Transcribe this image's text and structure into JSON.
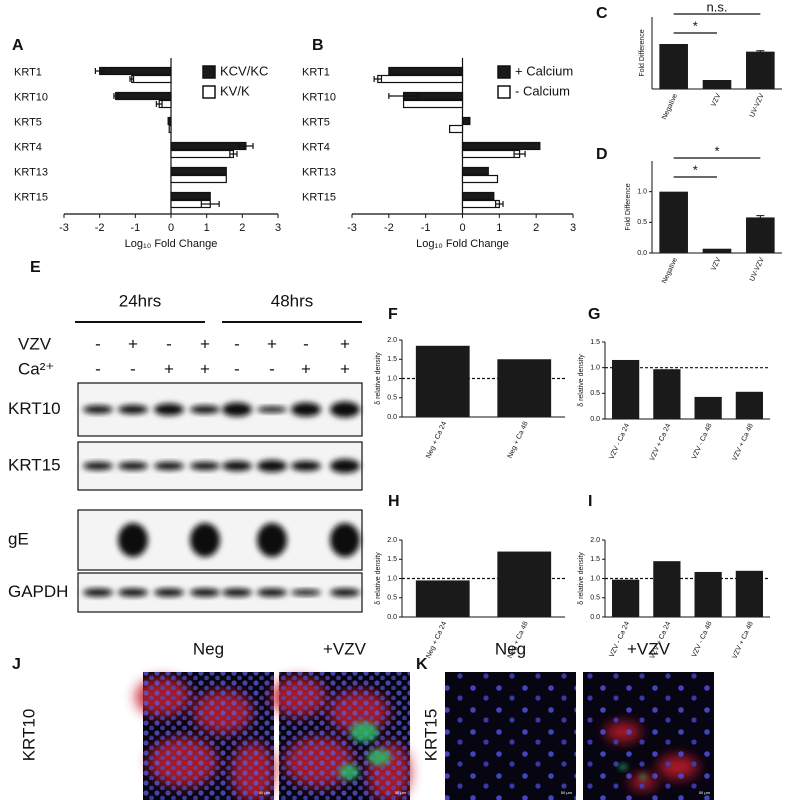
{
  "chart_data": [
    {
      "panel": "A",
      "type": "barh",
      "categories": [
        "KRT1",
        "KRT10",
        "KRT5",
        "KRT4",
        "KRT13",
        "KRT15"
      ],
      "series": [
        {
          "name": "KCV/KC",
          "color": "#1a1a1a",
          "values": [
            -2.0,
            -1.55,
            -0.08,
            2.1,
            1.55,
            1.1
          ],
          "errors": [
            0.12,
            0.05,
            null,
            0.2,
            null,
            null
          ]
        },
        {
          "name": "KV/K",
          "color": "#ffffff",
          "values": [
            -1.1,
            -0.33,
            -0.05,
            1.75,
            1.55,
            1.1
          ],
          "errors": [
            0.05,
            0.08,
            null,
            0.1,
            null,
            0.25
          ]
        }
      ],
      "x_label": "Log₁₀ Fold Change",
      "xlim": [
        -3,
        3
      ],
      "xticks": [
        -3,
        -2,
        -1,
        0,
        1,
        2,
        3
      ],
      "legend": "upper right"
    },
    {
      "panel": "B",
      "type": "barh",
      "categories": [
        "KRT1",
        "KRT10",
        "KRT5",
        "KRT4",
        "KRT13",
        "KRT15"
      ],
      "series": [
        {
          "name": "+ Calcium",
          "color": "#1a1a1a",
          "values": [
            -2.0,
            -1.6,
            0.2,
            2.1,
            0.7,
            0.85
          ],
          "errors": [
            null,
            0.4,
            null,
            null,
            null,
            null
          ]
        },
        {
          "name": "- Calcium",
          "color": "#ffffff",
          "values": [
            -2.3,
            -1.6,
            -0.35,
            1.55,
            0.95,
            1.0
          ],
          "errors": [
            0.1,
            null,
            null,
            0.15,
            null,
            0.1
          ]
        }
      ],
      "x_label": "Log₁₀ Fold Change",
      "xlim": [
        -3,
        3
      ],
      "xticks": [
        -3,
        -2,
        -1,
        0,
        1,
        2,
        3
      ],
      "legend": "upper right"
    },
    {
      "panel": "C",
      "type": "bar",
      "categories": [
        "Negative",
        "VZV",
        "UV-VZV"
      ],
      "values": [
        1,
        0.2,
        0.83
      ],
      "errors": [
        null,
        null,
        0.02
      ],
      "color": "#1a1a1a",
      "y_label": "Fold Difference",
      "ylim": [
        0,
        1.6
      ],
      "annotations": [
        {
          "text": "*",
          "between": [
            "Negative",
            "VZV"
          ]
        },
        {
          "text": "n.s.",
          "between": [
            "Negative",
            "UV-VZV"
          ]
        }
      ]
    },
    {
      "panel": "D",
      "type": "bar",
      "categories": [
        "Negative",
        "VZV",
        "UV-VZV"
      ],
      "values": [
        1,
        0.07,
        0.58
      ],
      "errors": [
        null,
        null,
        0.03
      ],
      "color": "#1a1a1a",
      "y_label": "Fold Difference",
      "ylim": [
        0,
        1.5
      ],
      "yticks": [
        {
          "value": 0,
          "label": "0.0"
        },
        {
          "value": 0.5,
          "label": "0.5"
        },
        {
          "value": 1,
          "label": "1.0"
        }
      ],
      "annotations": [
        {
          "text": "*",
          "between": [
            "Negative",
            "VZV"
          ]
        },
        {
          "text": "*",
          "between": [
            "Negative",
            "UV-VZV"
          ]
        }
      ]
    },
    {
      "panel": "F",
      "type": "bar",
      "categories": [
        "Neg + Ca 24",
        "Neg + Ca 48"
      ],
      "values": [
        1.85,
        1.5
      ],
      "color": "#1a1a1a",
      "y_label": "δ relative density",
      "ylim": [
        0,
        2
      ],
      "ref_line": 1,
      "yticks": [
        {
          "value": 0,
          "label": "0.0"
        },
        {
          "value": 0.5,
          "label": "0.5"
        },
        {
          "value": 1,
          "label": "1.0"
        },
        {
          "value": 1.5,
          "label": "1.5"
        },
        {
          "value": 2,
          "label": "2.0"
        }
      ]
    },
    {
      "panel": "G",
      "type": "bar",
      "categories": [
        "VZV - Ca 24",
        "VZV + Ca 24",
        "VZV - Ca 48",
        "VZV + Ca 48"
      ],
      "values": [
        1.15,
        0.97,
        0.43,
        0.53
      ],
      "color": "#1a1a1a",
      "y_label": "δ relative density",
      "ylim": [
        0,
        1.5
      ],
      "ref_line": 1,
      "yticks": [
        {
          "value": 0,
          "label": "0.0"
        },
        {
          "value": 0.5,
          "label": "0.5"
        },
        {
          "value": 1,
          "label": "1.0"
        },
        {
          "value": 1.5,
          "label": "1.5"
        }
      ]
    },
    {
      "panel": "H",
      "type": "bar",
      "categories": [
        "Neg + Ca 24",
        "Neg + Ca 48"
      ],
      "values": [
        0.95,
        1.7
      ],
      "color": "#1a1a1a",
      "y_label": "δ relative density",
      "ylim": [
        0,
        2
      ],
      "ref_line": 1,
      "yticks": [
        {
          "value": 0,
          "label": "0.0"
        },
        {
          "value": 0.5,
          "label": "0.5"
        },
        {
          "value": 1,
          "label": "1.0"
        },
        {
          "value": 1.5,
          "label": "1.5"
        },
        {
          "value": 2,
          "label": "2.0"
        }
      ]
    },
    {
      "panel": "I",
      "type": "bar",
      "categories": [
        "VZV - Ca 24",
        "VZV + Ca 24",
        "VZV - Ca 48",
        "VZV + Ca 48"
      ],
      "values": [
        0.97,
        1.45,
        1.17,
        1.2
      ],
      "color": "#1a1a1a",
      "y_label": "δ relative density",
      "ylim": [
        0,
        2
      ],
      "ref_line": 1,
      "yticks": [
        {
          "value": 0,
          "label": "0.0"
        },
        {
          "value": 0.5,
          "label": "0.5"
        },
        {
          "value": 1,
          "label": "1.0"
        },
        {
          "value": 1.5,
          "label": "1.5"
        },
        {
          "value": 2,
          "label": "2.0"
        }
      ]
    }
  ],
  "blot": {
    "panel": "E",
    "time_points": [
      "24hrs",
      "48hrs"
    ],
    "treatments": [
      {
        "name": "VZV",
        "signs": [
          "-",
          "+",
          "-",
          "+",
          "-",
          "+",
          "-",
          "+"
        ]
      },
      {
        "name": "Ca²⁺",
        "signs": [
          "-",
          "-",
          "+",
          "+",
          "-",
          "-",
          "+",
          "+"
        ]
      }
    ],
    "rows": [
      "KRT10",
      "KRT15",
      "gE",
      "GAPDH"
    ]
  },
  "micrographs": [
    {
      "panel": "J",
      "columns": [
        "Neg",
        "+VZV"
      ],
      "stain": "KRT10",
      "scale_bar": "50 µm"
    },
    {
      "panel": "K",
      "columns": [
        "Neg",
        "+VZV"
      ],
      "stain": "KRT15",
      "scale_bar": "50 µm"
    }
  ]
}
